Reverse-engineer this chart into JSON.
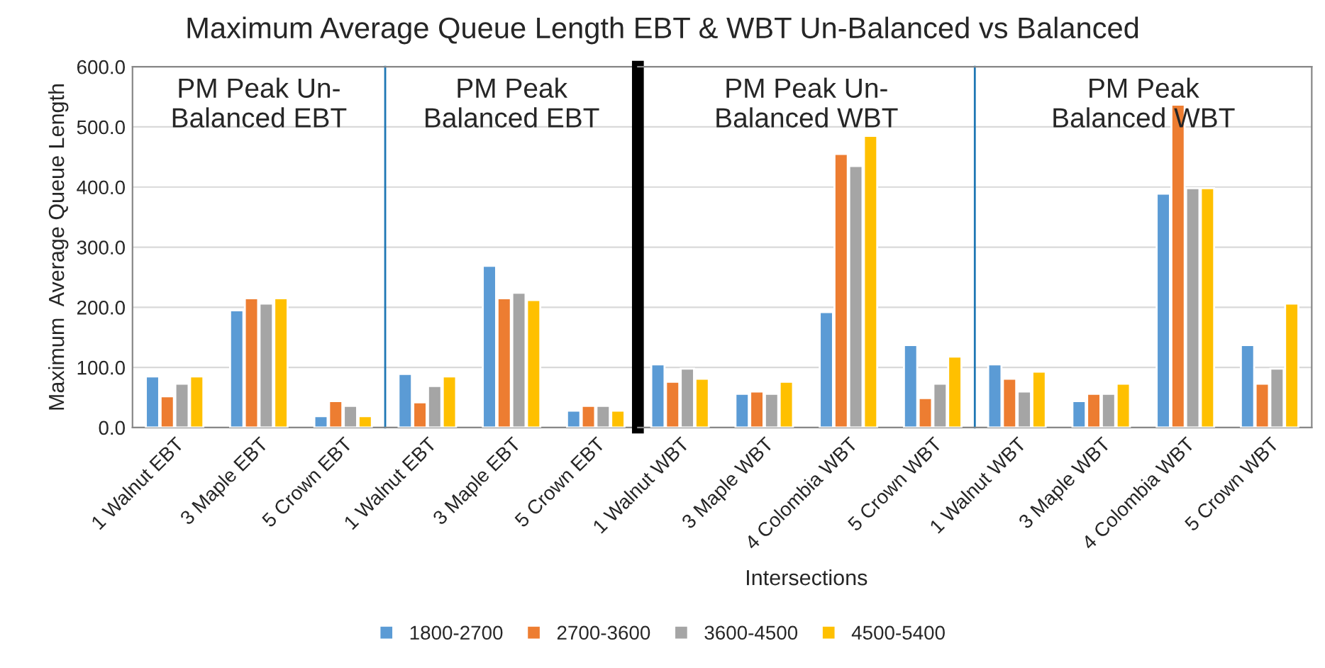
{
  "chart_data": [
    {
      "type": "bar",
      "title": "Maximum Average Queue Length EBT & WBT Un-Balanced vs Balanced",
      "subtitle": "PM Peak Un-\nBalanced EBT",
      "ylabel": "Maximum  Average Queue Length",
      "categories": [
        "1 Walnut EBT",
        "3 Maple EBT",
        "5 Crown EBT"
      ],
      "ylim": [
        0,
        600
      ],
      "yticks": [
        {
          "value": 0,
          "label": "0.0"
        },
        {
          "value": 100,
          "label": "100.0"
        },
        {
          "value": 200,
          "label": "200.0"
        },
        {
          "value": 300,
          "label": "300.0"
        },
        {
          "value": 400,
          "label": "400.0"
        },
        {
          "value": 500,
          "label": "500.0"
        },
        {
          "value": 600,
          "label": "600.0"
        }
      ],
      "grid": "y",
      "legend": "bottom",
      "series": [
        {
          "name": "1800-2700",
          "color": "#5b9bd5",
          "values": [
            85,
            195,
            19
          ]
        },
        {
          "name": "2700-3600",
          "color": "#ed7d31",
          "values": [
            52,
            215,
            44
          ]
        },
        {
          "name": "3600-4500",
          "color": "#a5a5a5",
          "values": [
            73,
            206,
            36
          ]
        },
        {
          "name": "4500-5400",
          "color": "#ffc000",
          "values": [
            85,
            215,
            19
          ]
        }
      ]
    },
    {
      "type": "bar",
      "subtitle": "PM Peak\nBalanced EBT",
      "categories": [
        "1 Walnut EBT",
        "3 Maple EBT",
        "5 Crown EBT"
      ],
      "ylim": [
        0,
        600
      ],
      "tick_labels": "x",
      "grid": "y",
      "series": [
        {
          "color": "#5b9bd5",
          "values": [
            89,
            269,
            28
          ]
        },
        {
          "color": "#ed7d31",
          "values": [
            42,
            215,
            36
          ]
        },
        {
          "color": "#a5a5a5",
          "values": [
            69,
            224,
            36
          ]
        },
        {
          "color": "#ffc000",
          "values": [
            85,
            212,
            28
          ]
        }
      ]
    },
    {
      "type": "bar",
      "subtitle": "PM Peak Un-\nBalanced WBT",
      "xlabel": "Intersections",
      "categories": [
        "1 Walnut WBT",
        "3 Maple WBT",
        "4 Colombia WBT",
        "5 Crown WBT"
      ],
      "ylim": [
        0,
        600
      ],
      "tick_labels": "x",
      "grid": "y",
      "series": [
        {
          "color": "#5b9bd5",
          "values": [
            105,
            56,
            192,
            137
          ]
        },
        {
          "color": "#ed7d31",
          "values": [
            76,
            60,
            455,
            49
          ]
        },
        {
          "color": "#a5a5a5",
          "values": [
            98,
            56,
            435,
            73
          ]
        },
        {
          "color": "#ffc000",
          "values": [
            81,
            76,
            485,
            118
          ]
        }
      ]
    },
    {
      "type": "bar",
      "subtitle": "PM Peak\nBalanced WBT",
      "categories": [
        "1 Walnut WBT",
        "3 Maple WBT",
        "4 Colombia WBT",
        "5 Crown WBT"
      ],
      "ylim": [
        0,
        600
      ],
      "tick_labels": "x",
      "grid": "y",
      "series": [
        {
          "color": "#5b9bd5",
          "values": [
            105,
            44,
            389,
            137
          ]
        },
        {
          "color": "#ed7d31",
          "values": [
            81,
            56,
            537,
            73
          ]
        },
        {
          "color": "#a5a5a5",
          "values": [
            60,
            56,
            398,
            98
          ]
        },
        {
          "color": "#ffc000",
          "values": [
            93,
            73,
            398,
            206
          ]
        }
      ]
    }
  ]
}
